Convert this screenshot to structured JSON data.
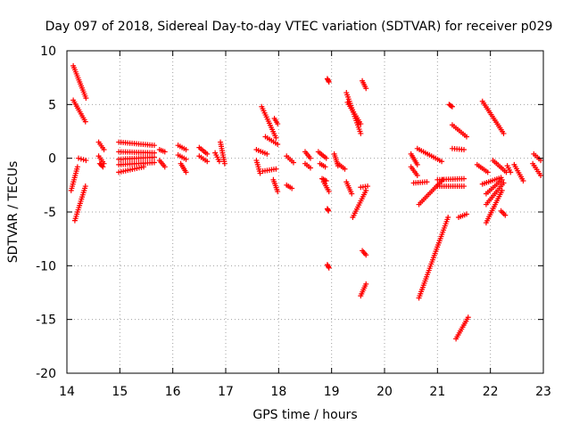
{
  "chart_data": {
    "type": "scatter",
    "title": "Day 097 of 2018, Sidereal Day-to-day VTEC variation (SDTVAR) for receiver p029",
    "xlabel": "GPS time / hours",
    "ylabel": "SDTVAR / TECUs",
    "xlim": [
      14,
      23
    ],
    "ylim": [
      -20,
      10
    ],
    "xticks": [
      "14",
      "15",
      "16",
      "17",
      "18",
      "19",
      "20",
      "21",
      "22",
      "23"
    ],
    "yticks": [
      "10",
      "5",
      "0",
      "-5",
      "-10",
      "-15",
      "-20"
    ],
    "grid": true,
    "marker": "+",
    "color": "#ff0000",
    "segments": [
      {
        "x": [
          14.12,
          14.36
        ],
        "y": [
          8.6,
          5.6
        ]
      },
      {
        "x": [
          14.12,
          14.35
        ],
        "y": [
          5.4,
          3.4
        ]
      },
      {
        "x": [
          14.15,
          14.35
        ],
        "y": [
          -5.8,
          -2.6
        ]
      },
      {
        "x": [
          14.08,
          14.2
        ],
        "y": [
          -3.0,
          -0.8
        ]
      },
      {
        "x": [
          14.22,
          14.36
        ],
        "y": [
          0.0,
          -0.2
        ]
      },
      {
        "x": [
          14.6,
          14.7
        ],
        "y": [
          1.5,
          0.8
        ]
      },
      {
        "x": [
          14.6,
          14.7
        ],
        "y": [
          0.2,
          -0.5
        ]
      },
      {
        "x": [
          14.62,
          14.68
        ],
        "y": [
          -0.5,
          -0.8
        ]
      },
      {
        "x": [
          14.98,
          15.65
        ],
        "y": [
          1.5,
          1.2
        ]
      },
      {
        "x": [
          14.98,
          15.65
        ],
        "y": [
          0.6,
          0.5
        ]
      },
      {
        "x": [
          14.98,
          15.65
        ],
        "y": [
          -0.1,
          0.1
        ]
      },
      {
        "x": [
          14.98,
          15.65
        ],
        "y": [
          -0.6,
          -0.4
        ]
      },
      {
        "x": [
          14.98,
          15.45
        ],
        "y": [
          -1.3,
          -0.8
        ]
      },
      {
        "x": [
          15.75,
          15.85
        ],
        "y": [
          0.8,
          0.6
        ]
      },
      {
        "x": [
          15.75,
          15.85
        ],
        "y": [
          -0.2,
          -0.8
        ]
      },
      {
        "x": [
          16.1,
          16.25
        ],
        "y": [
          1.2,
          0.8
        ]
      },
      {
        "x": [
          16.1,
          16.25
        ],
        "y": [
          0.3,
          -0.1
        ]
      },
      {
        "x": [
          16.15,
          16.25
        ],
        "y": [
          -0.5,
          -1.3
        ]
      },
      {
        "x": [
          16.5,
          16.65
        ],
        "y": [
          1.0,
          0.4
        ]
      },
      {
        "x": [
          16.5,
          16.65
        ],
        "y": [
          0.2,
          -0.3
        ]
      },
      {
        "x": [
          16.8,
          16.88
        ],
        "y": [
          0.5,
          -0.3
        ]
      },
      {
        "x": [
          16.9,
          16.98
        ],
        "y": [
          1.5,
          -0.5
        ]
      },
      {
        "x": [
          17.58,
          17.78
        ],
        "y": [
          0.8,
          0.4
        ]
      },
      {
        "x": [
          17.58,
          17.65
        ],
        "y": [
          -0.2,
          -1.4
        ]
      },
      {
        "x": [
          17.68,
          17.95
        ],
        "y": [
          4.8,
          1.9
        ]
      },
      {
        "x": [
          17.75,
          17.98
        ],
        "y": [
          2.0,
          1.3
        ]
      },
      {
        "x": [
          17.7,
          17.95
        ],
        "y": [
          -1.2,
          -1.0
        ]
      },
      {
        "x": [
          17.9,
          17.98
        ],
        "y": [
          -2.0,
          -3.1
        ]
      },
      {
        "x": [
          17.92,
          17.98
        ],
        "y": [
          3.7,
          3.2
        ]
      },
      {
        "x": [
          18.15,
          18.28
        ],
        "y": [
          0.2,
          -0.4
        ]
      },
      {
        "x": [
          18.15,
          18.25
        ],
        "y": [
          -2.5,
          -2.8
        ]
      },
      {
        "x": [
          18.5,
          18.6
        ],
        "y": [
          0.6,
          0.0
        ]
      },
      {
        "x": [
          18.5,
          18.6
        ],
        "y": [
          -0.5,
          -0.9
        ]
      },
      {
        "x": [
          18.75,
          18.9
        ],
        "y": [
          0.6,
          0.0
        ]
      },
      {
        "x": [
          18.78,
          18.88
        ],
        "y": [
          -0.5,
          -0.8
        ]
      },
      {
        "x": [
          18.82,
          18.9
        ],
        "y": [
          -1.9,
          -2.1
        ]
      },
      {
        "x": [
          18.85,
          18.95
        ],
        "y": [
          -2.2,
          -3.1
        ]
      },
      {
        "x": [
          18.92,
          18.95
        ],
        "y": [
          7.4,
          7.1
        ]
      },
      {
        "x": [
          18.92,
          18.95
        ],
        "y": [
          -9.9,
          -10.2
        ]
      },
      {
        "x": [
          18.92,
          18.94
        ],
        "y": [
          -4.7,
          -4.9
        ]
      },
      {
        "x": [
          19.05,
          19.12
        ],
        "y": [
          0.4,
          -0.7
        ]
      },
      {
        "x": [
          19.12,
          19.25
        ],
        "y": [
          -0.5,
          -1.0
        ]
      },
      {
        "x": [
          19.28,
          19.55
        ],
        "y": [
          6.1,
          2.3
        ]
      },
      {
        "x": [
          19.3,
          19.55
        ],
        "y": [
          5.2,
          3.2
        ]
      },
      {
        "x": [
          19.28,
          19.38
        ],
        "y": [
          -2.2,
          -3.3
        ]
      },
      {
        "x": [
          19.4,
          19.65
        ],
        "y": [
          -5.5,
          -3.0
        ]
      },
      {
        "x": [
          19.55,
          19.68
        ],
        "y": [
          -2.7,
          -2.6
        ]
      },
      {
        "x": [
          19.58,
          19.65
        ],
        "y": [
          7.2,
          6.5
        ]
      },
      {
        "x": [
          19.58,
          19.65
        ],
        "y": [
          -8.6,
          -9.0
        ]
      },
      {
        "x": [
          19.55,
          19.65
        ],
        "y": [
          -12.8,
          -11.7
        ]
      },
      {
        "x": [
          20.5,
          20.62
        ],
        "y": [
          0.4,
          -0.6
        ]
      },
      {
        "x": [
          20.5,
          20.62
        ],
        "y": [
          -0.8,
          -1.6
        ]
      },
      {
        "x": [
          20.55,
          20.8
        ],
        "y": [
          -2.3,
          -2.2
        ]
      },
      {
        "x": [
          20.62,
          21.08
        ],
        "y": [
          0.9,
          -0.3
        ]
      },
      {
        "x": [
          20.65,
          21.1
        ],
        "y": [
          -4.3,
          -2.0
        ]
      },
      {
        "x": [
          20.65,
          21.2
        ],
        "y": [
          -13.0,
          -5.5
        ]
      },
      {
        "x": [
          21.0,
          21.5
        ],
        "y": [
          -2.6,
          -2.6
        ]
      },
      {
        "x": [
          21.0,
          21.5
        ],
        "y": [
          -2.0,
          -1.9
        ]
      },
      {
        "x": [
          21.22,
          21.28
        ],
        "y": [
          5.0,
          4.8
        ]
      },
      {
        "x": [
          21.28,
          21.55
        ],
        "y": [
          3.1,
          2.0
        ]
      },
      {
        "x": [
          21.28,
          21.5
        ],
        "y": [
          0.9,
          0.8
        ]
      },
      {
        "x": [
          21.4,
          21.55
        ],
        "y": [
          -5.5,
          -5.2
        ]
      },
      {
        "x": [
          21.35,
          21.58
        ],
        "y": [
          -16.8,
          -14.8
        ]
      },
      {
        "x": [
          21.75,
          21.95
        ],
        "y": [
          -0.6,
          -1.3
        ]
      },
      {
        "x": [
          21.85,
          22.2
        ],
        "y": [
          -2.4,
          -1.8
        ]
      },
      {
        "x": [
          21.85,
          22.25
        ],
        "y": [
          5.3,
          2.3
        ]
      },
      {
        "x": [
          21.92,
          22.22
        ],
        "y": [
          -3.3,
          -2.0
        ]
      },
      {
        "x": [
          21.92,
          22.25
        ],
        "y": [
          -4.3,
          -2.3
        ]
      },
      {
        "x": [
          21.92,
          22.22
        ],
        "y": [
          -6.0,
          -3.0
        ]
      },
      {
        "x": [
          22.05,
          22.3
        ],
        "y": [
          -0.2,
          -1.3
        ]
      },
      {
        "x": [
          22.2,
          22.28
        ],
        "y": [
          -4.9,
          -5.3
        ]
      },
      {
        "x": [
          22.32,
          22.38
        ],
        "y": [
          -0.7,
          -1.3
        ]
      },
      {
        "x": [
          22.45,
          22.62
        ],
        "y": [
          -0.6,
          -2.1
        ]
      },
      {
        "x": [
          22.82,
          22.95
        ],
        "y": [
          0.4,
          -0.2
        ]
      },
      {
        "x": [
          22.8,
          22.95
        ],
        "y": [
          -0.5,
          -1.6
        ]
      }
    ]
  }
}
